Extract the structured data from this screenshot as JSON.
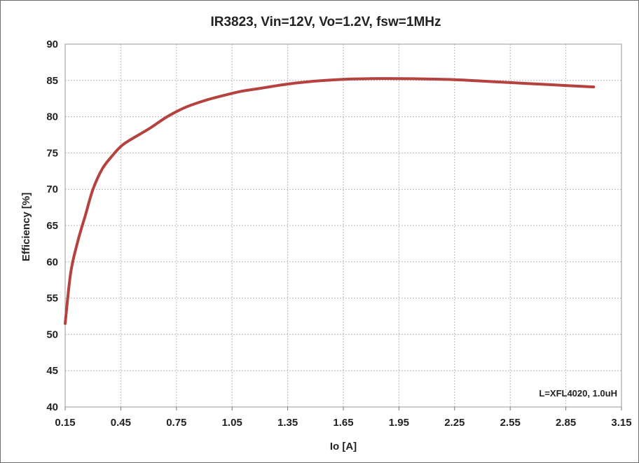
{
  "chart_data": {
    "type": "line",
    "title": "IR3823, Vin=12V, Vo=1.2V, fsw=1MHz",
    "xlabel": "Io [A]",
    "ylabel": "Efficiency [%]",
    "annotation": "L=XFL4020, 1.0uH",
    "xlim": [
      0.15,
      3.15
    ],
    "ylim": [
      40,
      90
    ],
    "x_ticks": [
      "0.15",
      "0.45",
      "0.75",
      "1.05",
      "1.35",
      "1.65",
      "1.95",
      "2.25",
      "2.55",
      "2.85",
      "3.15"
    ],
    "y_ticks": [
      "40",
      "45",
      "50",
      "55",
      "60",
      "65",
      "70",
      "75",
      "80",
      "85",
      "90"
    ],
    "grid": true,
    "series": [
      {
        "color": "#b5423f",
        "x": [
          0.15,
          0.18,
          0.22,
          0.26,
          0.3,
          0.35,
          0.4,
          0.45,
          0.5,
          0.6,
          0.7,
          0.8,
          0.9,
          1.0,
          1.1,
          1.2,
          1.35,
          1.5,
          1.65,
          1.8,
          1.95,
          2.1,
          2.25,
          2.4,
          2.55,
          2.7,
          2.85,
          3.0
        ],
        "y": [
          51.5,
          58.5,
          63.0,
          66.5,
          70.0,
          72.8,
          74.5,
          75.9,
          76.8,
          78.3,
          80.0,
          81.3,
          82.2,
          82.9,
          83.5,
          83.9,
          84.5,
          84.9,
          85.15,
          85.25,
          85.25,
          85.2,
          85.1,
          84.9,
          84.7,
          84.5,
          84.3,
          84.1
        ]
      }
    ]
  }
}
